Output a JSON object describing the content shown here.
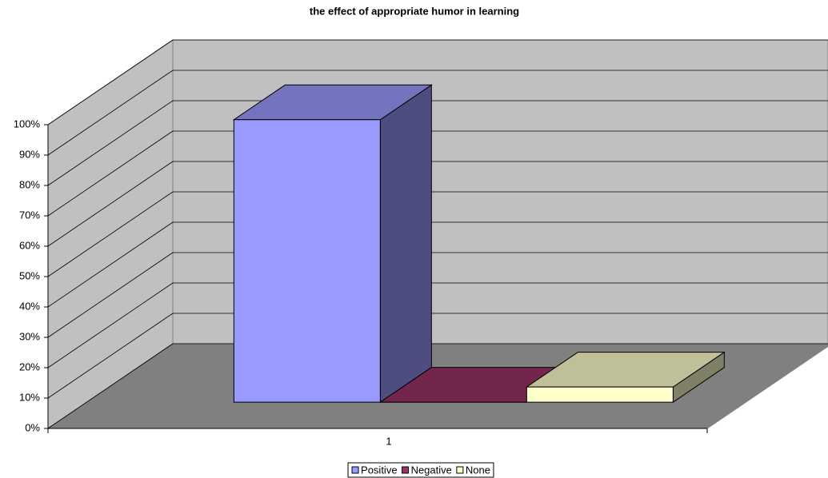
{
  "chart_data": {
    "type": "bar",
    "title": "the effect of appropriate humor in learning",
    "categories": [
      "1"
    ],
    "series": [
      {
        "name": "Positive",
        "color": "#9999ff",
        "values": [
          93
        ]
      },
      {
        "name": "Negative",
        "color": "#993366",
        "values": [
          0
        ]
      },
      {
        "name": "None",
        "color": "#ffffcc",
        "values": [
          5
        ]
      }
    ],
    "ylim": [
      0,
      100
    ],
    "yticks": [
      {
        "value": 0,
        "label": "0%"
      },
      {
        "value": 10,
        "label": "10%"
      },
      {
        "value": 20,
        "label": "20%"
      },
      {
        "value": 30,
        "label": "30%"
      },
      {
        "value": 40,
        "label": "40%"
      },
      {
        "value": 50,
        "label": "50%"
      },
      {
        "value": 60,
        "label": "60%"
      },
      {
        "value": 70,
        "label": "70%"
      },
      {
        "value": 80,
        "label": "80%"
      },
      {
        "value": 90,
        "label": "90%"
      },
      {
        "value": 100,
        "label": "100%"
      }
    ],
    "grid": true,
    "legend": "bottom"
  }
}
